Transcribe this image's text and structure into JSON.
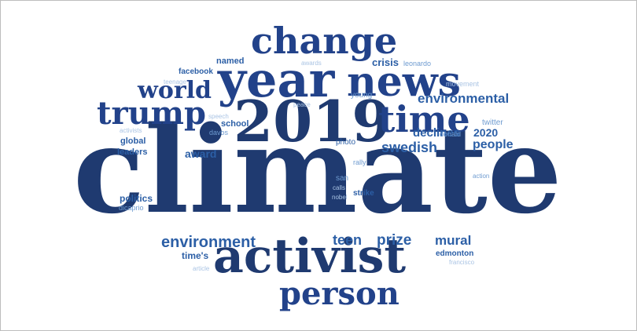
{
  "palette": {
    "darkest": "#1f3a70",
    "dark": "#22428a",
    "medium": "#2c5fa6",
    "light": "#6e9bd0",
    "lightest": "#aac4e4"
  },
  "words": {
    "climate": "climate",
    "change": "change",
    "year": "year",
    "news": "news",
    "y2019": "2019",
    "time": "time",
    "trump": "trump",
    "world": "world",
    "environmental": "environmental",
    "activist": "activist",
    "person": "person",
    "environment": "environment",
    "swedish": "swedish",
    "people": "people",
    "declines": "declines",
    "y2020": "2020",
    "prize": "prize",
    "teen": "teen",
    "mural": "mural",
    "crisis": "crisis",
    "named": "named",
    "awards": "awards",
    "leonardo": "leonardo",
    "facebook": "facebook",
    "teenage": "teenage",
    "peace": "peace",
    "young": "young",
    "movement": "movement",
    "speech": "speech",
    "school": "school",
    "davos": "davos",
    "activists": "activists",
    "global": "global",
    "leaders": "leaders",
    "award": "award",
    "photo": "photo",
    "donald": "donald",
    "twitter": "twitter",
    "rally": "rally",
    "action": "action",
    "politics": "politics",
    "dicaprio": "dicaprio",
    "san": "san",
    "calls": "calls",
    "nobel": "nobel",
    "strike": "strike",
    "times": "time's",
    "edmonton": "edmonton",
    "francisco": "francisco",
    "article": "article"
  }
}
